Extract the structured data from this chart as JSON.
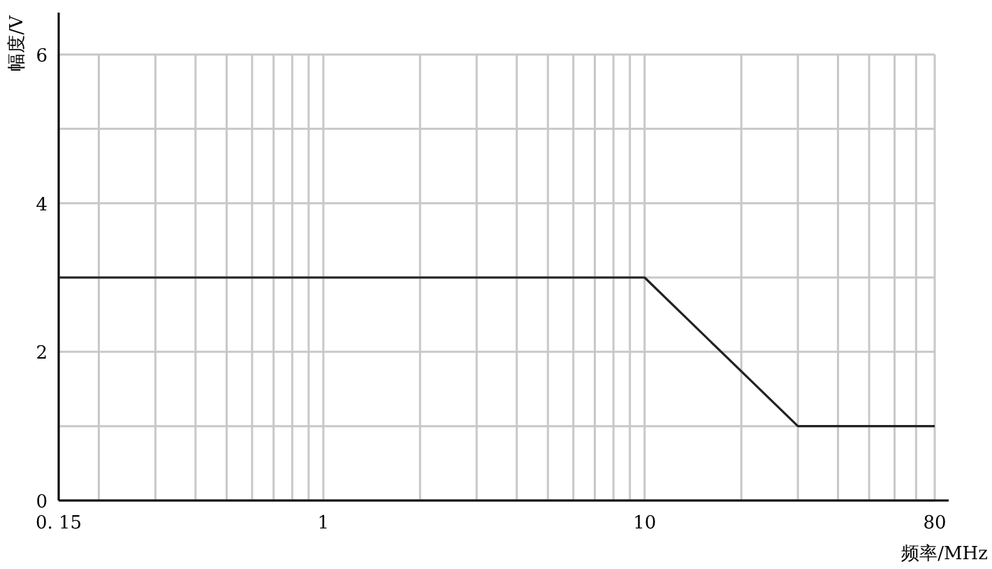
{
  "chart_data": {
    "type": "line",
    "xlabel": "频率/MHz",
    "ylabel": "幅度/V",
    "log": "x",
    "x": [
      0.15,
      10,
      30,
      80
    ],
    "series": [
      {
        "color": "#222222",
        "values": [
          3,
          3,
          1,
          1
        ]
      }
    ],
    "xlim": [
      0.15,
      80
    ],
    "xticks": [
      0.15,
      {
        "value": 0.2,
        "label": null
      },
      {
        "value": 0.3,
        "label": null
      },
      {
        "value": 0.4,
        "label": null
      },
      {
        "value": 0.5,
        "label": null
      },
      {
        "value": 0.6,
        "label": null
      },
      {
        "value": 0.7,
        "label": null
      },
      {
        "value": 0.8,
        "label": null
      },
      {
        "value": 0.9,
        "label": null
      },
      1,
      {
        "value": 2,
        "label": null
      },
      {
        "value": 3,
        "label": null
      },
      {
        "value": 4,
        "label": null
      },
      {
        "value": 5,
        "label": null
      },
      {
        "value": 6,
        "label": null
      },
      {
        "value": 7,
        "label": null
      },
      {
        "value": 8,
        "label": null
      },
      {
        "value": 9,
        "label": null
      },
      10,
      {
        "value": 20,
        "label": null
      },
      {
        "value": 30,
        "label": null
      },
      {
        "value": 40,
        "label": null
      },
      {
        "value": 50,
        "label": null
      },
      {
        "value": 60,
        "label": null
      },
      {
        "value": 70,
        "label": null
      },
      80
    ],
    "ylim": [
      0,
      6
    ],
    "yticks": [
      0,
      {
        "value": 1,
        "label": null
      },
      2,
      {
        "value": 3,
        "label": null
      },
      4,
      {
        "value": 5,
        "label": null
      },
      6
    ],
    "grid": true,
    "marker": "none",
    "line_style": "solid"
  }
}
